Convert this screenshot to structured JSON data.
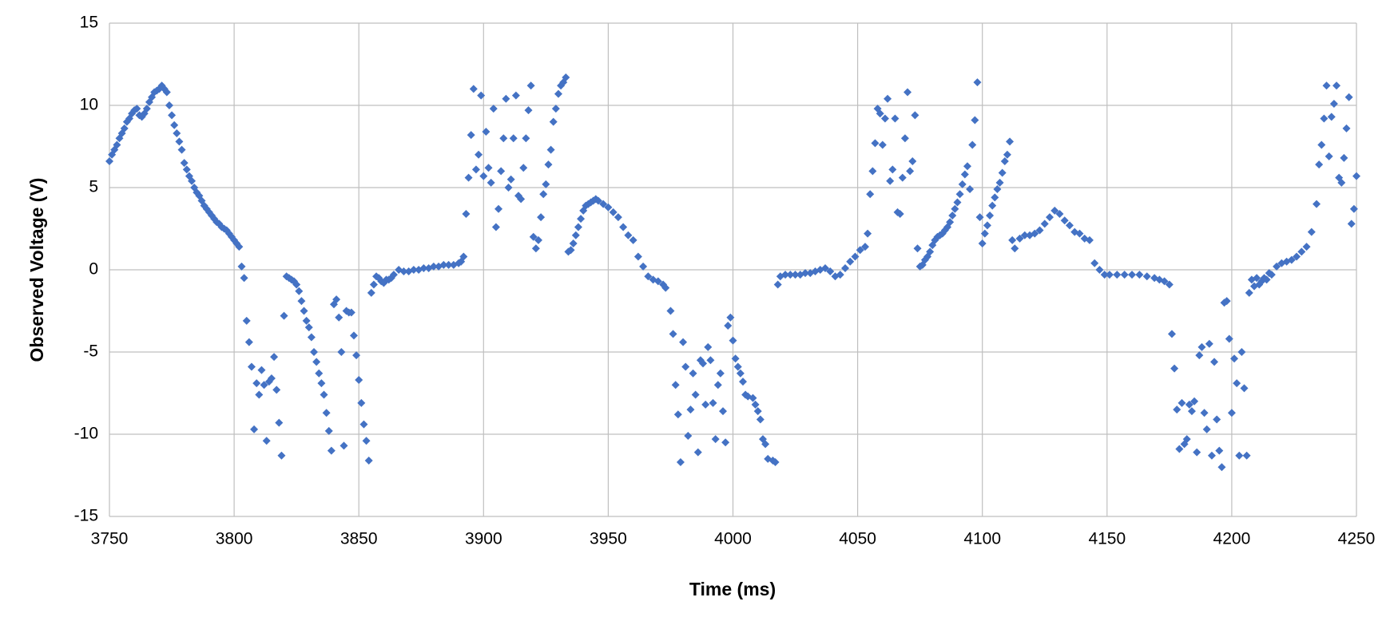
{
  "chart_data": {
    "type": "scatter",
    "xlabel": "Time (ms)",
    "ylabel": "Observed Voltage (V)",
    "color": "#4472c4",
    "grid": true,
    "xlim": [
      3750,
      4250
    ],
    "ylim": [
      -15,
      15
    ],
    "xticks": [
      3750,
      3800,
      3850,
      3900,
      3950,
      4000,
      4050,
      4100,
      4150,
      4200,
      4250
    ],
    "yticks": [
      -15,
      -10,
      -5,
      0,
      5,
      10,
      15
    ],
    "x": [
      3750,
      3751,
      3752,
      3753,
      3754,
      3755,
      3756,
      3757,
      3758,
      3759,
      3760,
      3761,
      3762,
      3763,
      3764,
      3765,
      3766,
      3767,
      3768,
      3769,
      3770,
      3771,
      3772,
      3773,
      3774,
      3775,
      3776,
      3777,
      3778,
      3779,
      3780,
      3781,
      3782,
      3783,
      3784,
      3785,
      3786,
      3787,
      3788,
      3789,
      3790,
      3791,
      3792,
      3793,
      3794,
      3795,
      3796,
      3797,
      3798,
      3799,
      3800,
      3801,
      3802,
      3803,
      3804,
      3805,
      3806,
      3807,
      3808,
      3809,
      3810,
      3811,
      3812,
      3813,
      3814,
      3815,
      3816,
      3817,
      3818,
      3819,
      3820,
      3821,
      3822,
      3823,
      3824,
      3825,
      3826,
      3827,
      3828,
      3829,
      3830,
      3831,
      3832,
      3833,
      3834,
      3835,
      3836,
      3837,
      3838,
      3839,
      3840,
      3841,
      3842,
      3843,
      3844,
      3845,
      3846,
      3847,
      3848,
      3849,
      3850,
      3851,
      3852,
      3853,
      3854,
      3855,
      3856,
      3857,
      3858,
      3859,
      3860,
      3861,
      3862,
      3863,
      3864,
      3866,
      3868,
      3870,
      3872,
      3874,
      3876,
      3878,
      3880,
      3882,
      3884,
      3886,
      3888,
      3890,
      3891,
      3892,
      3893,
      3894,
      3895,
      3896,
      3897,
      3898,
      3899,
      3900,
      3901,
      3902,
      3903,
      3904,
      3905,
      3906,
      3907,
      3908,
      3909,
      3910,
      3911,
      3912,
      3913,
      3914,
      3915,
      3916,
      3917,
      3918,
      3919,
      3920,
      3921,
      3922,
      3923,
      3924,
      3925,
      3926,
      3927,
      3928,
      3929,
      3930,
      3931,
      3932,
      3933,
      3934,
      3935,
      3936,
      3937,
      3938,
      3939,
      3940,
      3941,
      3942,
      3943,
      3944,
      3945,
      3946,
      3948,
      3950,
      3952,
      3954,
      3956,
      3958,
      3960,
      3962,
      3964,
      3966,
      3968,
      3970,
      3972,
      3973,
      3975,
      3976,
      3977,
      3978,
      3979,
      3980,
      3981,
      3982,
      3983,
      3984,
      3985,
      3986,
      3987,
      3988,
      3989,
      3990,
      3991,
      3992,
      3993,
      3994,
      3995,
      3996,
      3997,
      3998,
      3999,
      4000,
      4001,
      4002,
      4003,
      4004,
      4005,
      4006,
      4008,
      4009,
      4010,
      4011,
      4012,
      4013,
      4014,
      4016,
      4017,
      4018,
      4019,
      4021,
      4023,
      4025,
      4027,
      4029,
      4031,
      4033,
      4035,
      4037,
      4039,
      4041,
      4043,
      4045,
      4047,
      4049,
      4051,
      4053,
      4054,
      4055,
      4056,
      4057,
      4058,
      4059,
      4060,
      4061,
      4062,
      4063,
      4064,
      4065,
      4066,
      4067,
      4068,
      4069,
      4070,
      4071,
      4072,
      4073,
      4074,
      4075,
      4076,
      4077,
      4078,
      4079,
      4080,
      4081,
      4082,
      4083,
      4084,
      4085,
      4086,
      4087,
      4088,
      4089,
      4090,
      4091,
      4092,
      4093,
      4094,
      4095,
      4096,
      4097,
      4098,
      4099,
      4100,
      4101,
      4102,
      4103,
      4104,
      4105,
      4106,
      4107,
      4108,
      4109,
      4110,
      4111,
      4112,
      4113,
      4115,
      4117,
      4119,
      4121,
      4123,
      4125,
      4127,
      4129,
      4131,
      4133,
      4135,
      4137,
      4139,
      4141,
      4143,
      4145,
      4147,
      4149,
      4151,
      4154,
      4157,
      4160,
      4163,
      4166,
      4169,
      4171,
      4173,
      4175,
      4176,
      4177,
      4178,
      4179,
      4180,
      4181,
      4182,
      4183,
      4184,
      4185,
      4186,
      4187,
      4188,
      4189,
      4190,
      4191,
      4192,
      4193,
      4194,
      4195,
      4196,
      4197,
      4198,
      4199,
      4200,
      4201,
      4202,
      4203,
      4204,
      4205,
      4206,
      4207,
      4208,
      4209,
      4210,
      4211,
      4212,
      4213,
      4214,
      4215,
      4216,
      4218,
      4220,
      4222,
      4224,
      4226,
      4228,
      4230,
      4232,
      4234,
      4235,
      4236,
      4237,
      4238,
      4239,
      4240,
      4241,
      4242,
      4243,
      4244,
      4245,
      4246,
      4247,
      4248,
      4249,
      4250
    ],
    "values": [
      6.6,
      7.0,
      7.3,
      7.6,
      8.0,
      8.3,
      8.6,
      9.0,
      9.2,
      9.5,
      9.7,
      9.8,
      9.4,
      9.3,
      9.5,
      9.8,
      10.2,
      10.5,
      10.8,
      10.9,
      11.0,
      11.2,
      11.0,
      10.8,
      10.0,
      9.4,
      8.8,
      8.3,
      7.8,
      7.3,
      6.5,
      6.1,
      5.7,
      5.4,
      5.0,
      4.7,
      4.5,
      4.2,
      3.9,
      3.7,
      3.5,
      3.3,
      3.1,
      2.9,
      2.8,
      2.6,
      2.5,
      2.4,
      2.2,
      2.0,
      1.8,
      1.6,
      1.4,
      0.2,
      -0.5,
      -3.1,
      -4.4,
      -5.9,
      -9.7,
      -6.9,
      -7.6,
      -6.1,
      -7.0,
      -10.4,
      -6.8,
      -6.6,
      -5.3,
      -7.3,
      -9.3,
      -11.3,
      -2.8,
      -0.4,
      -0.5,
      -0.6,
      -0.7,
      -0.9,
      -1.3,
      -1.9,
      -2.5,
      -3.1,
      -3.5,
      -4.1,
      -5.0,
      -5.6,
      -6.3,
      -6.9,
      -7.6,
      -8.7,
      -9.8,
      -11.0,
      -2.1,
      -1.8,
      -2.9,
      -5.0,
      -10.7,
      -2.5,
      -2.6,
      -2.6,
      -4.0,
      -5.2,
      -6.7,
      -8.1,
      -9.4,
      -10.4,
      -11.6,
      -1.4,
      -0.9,
      -0.4,
      -0.5,
      -0.7,
      -0.8,
      -0.6,
      -0.6,
      -0.5,
      -0.3,
      0.0,
      -0.1,
      -0.1,
      0.0,
      0.0,
      0.1,
      0.1,
      0.2,
      0.2,
      0.3,
      0.3,
      0.3,
      0.4,
      0.5,
      0.8,
      3.4,
      5.6,
      8.2,
      11.0,
      6.1,
      7.0,
      10.6,
      5.7,
      8.4,
      6.2,
      5.3,
      9.8,
      2.6,
      3.7,
      6.0,
      8.0,
      10.4,
      5.0,
      5.5,
      8.0,
      10.6,
      4.5,
      4.3,
      6.2,
      8.0,
      9.7,
      11.2,
      2.0,
      1.3,
      1.8,
      3.2,
      4.6,
      5.2,
      6.4,
      7.3,
      9.0,
      9.8,
      10.7,
      11.2,
      11.4,
      11.7,
      1.1,
      1.2,
      1.6,
      2.1,
      2.6,
      3.1,
      3.6,
      3.9,
      4.0,
      4.1,
      4.2,
      4.3,
      4.2,
      4.0,
      3.8,
      3.5,
      3.2,
      2.6,
      2.1,
      1.8,
      0.8,
      0.2,
      -0.4,
      -0.6,
      -0.7,
      -0.9,
      -1.1,
      -2.5,
      -3.9,
      -7.0,
      -8.8,
      -11.7,
      -4.4,
      -5.9,
      -10.1,
      -8.5,
      -6.3,
      -7.6,
      -11.1,
      -5.5,
      -5.7,
      -8.2,
      -4.7,
      -5.5,
      -8.1,
      -10.3,
      -7.0,
      -6.3,
      -8.6,
      -10.5,
      -3.4,
      -2.9,
      -4.3,
      -5.4,
      -5.9,
      -6.3,
      -6.8,
      -7.6,
      -7.7,
      -7.8,
      -8.2,
      -8.6,
      -9.1,
      -10.3,
      -10.6,
      -11.5,
      -11.6,
      -11.7,
      -0.9,
      -0.4,
      -0.3,
      -0.3,
      -0.3,
      -0.3,
      -0.2,
      -0.2,
      -0.1,
      0.0,
      0.1,
      -0.1,
      -0.4,
      -0.3,
      0.1,
      0.5,
      0.8,
      1.2,
      1.4,
      2.2,
      4.6,
      6.0,
      7.7,
      9.8,
      9.5,
      7.6,
      9.2,
      10.4,
      5.4,
      6.1,
      9.2,
      3.5,
      3.4,
      5.6,
      8.0,
      10.8,
      6.0,
      6.6,
      9.4,
      1.3,
      0.2,
      0.3,
      0.6,
      0.8,
      1.1,
      1.5,
      1.8,
      2.0,
      2.1,
      2.2,
      2.4,
      2.6,
      2.9,
      3.3,
      3.7,
      4.1,
      4.6,
      5.2,
      5.8,
      6.3,
      4.9,
      7.6,
      9.1,
      11.4,
      3.2,
      1.6,
      2.2,
      2.7,
      3.3,
      3.9,
      4.4,
      4.9,
      5.3,
      5.9,
      6.6,
      7.0,
      7.8,
      1.8,
      1.3,
      1.9,
      2.1,
      2.1,
      2.2,
      2.4,
      2.8,
      3.2,
      3.6,
      3.4,
      3.0,
      2.7,
      2.3,
      2.2,
      1.9,
      1.8,
      0.4,
      0.0,
      -0.3,
      -0.3,
      -0.3,
      -0.3,
      -0.3,
      -0.3,
      -0.4,
      -0.5,
      -0.6,
      -0.7,
      -0.9,
      -3.9,
      -6.0,
      -8.5,
      -10.9,
      -8.1,
      -10.6,
      -10.3,
      -8.2,
      -8.6,
      -8.0,
      -11.1,
      -5.2,
      -4.7,
      -8.7,
      -9.7,
      -4.5,
      -11.3,
      -5.6,
      -9.1,
      -11.0,
      -12.0,
      -2.0,
      -1.9,
      -4.2,
      -8.7,
      -5.4,
      -6.9,
      -11.3,
      -5.0,
      -7.2,
      -11.3,
      -1.4,
      -0.6,
      -1.0,
      -0.5,
      -0.9,
      -0.7,
      -0.5,
      -0.6,
      -0.2,
      -0.3,
      0.2,
      0.4,
      0.5,
      0.6,
      0.8,
      1.1,
      1.4,
      2.3,
      4.0,
      6.4,
      7.6,
      9.2,
      11.2,
      6.9,
      9.3,
      10.1,
      11.2,
      5.6,
      5.3,
      6.8,
      8.6,
      10.5,
      2.8,
      3.7,
      5.7
    ]
  }
}
